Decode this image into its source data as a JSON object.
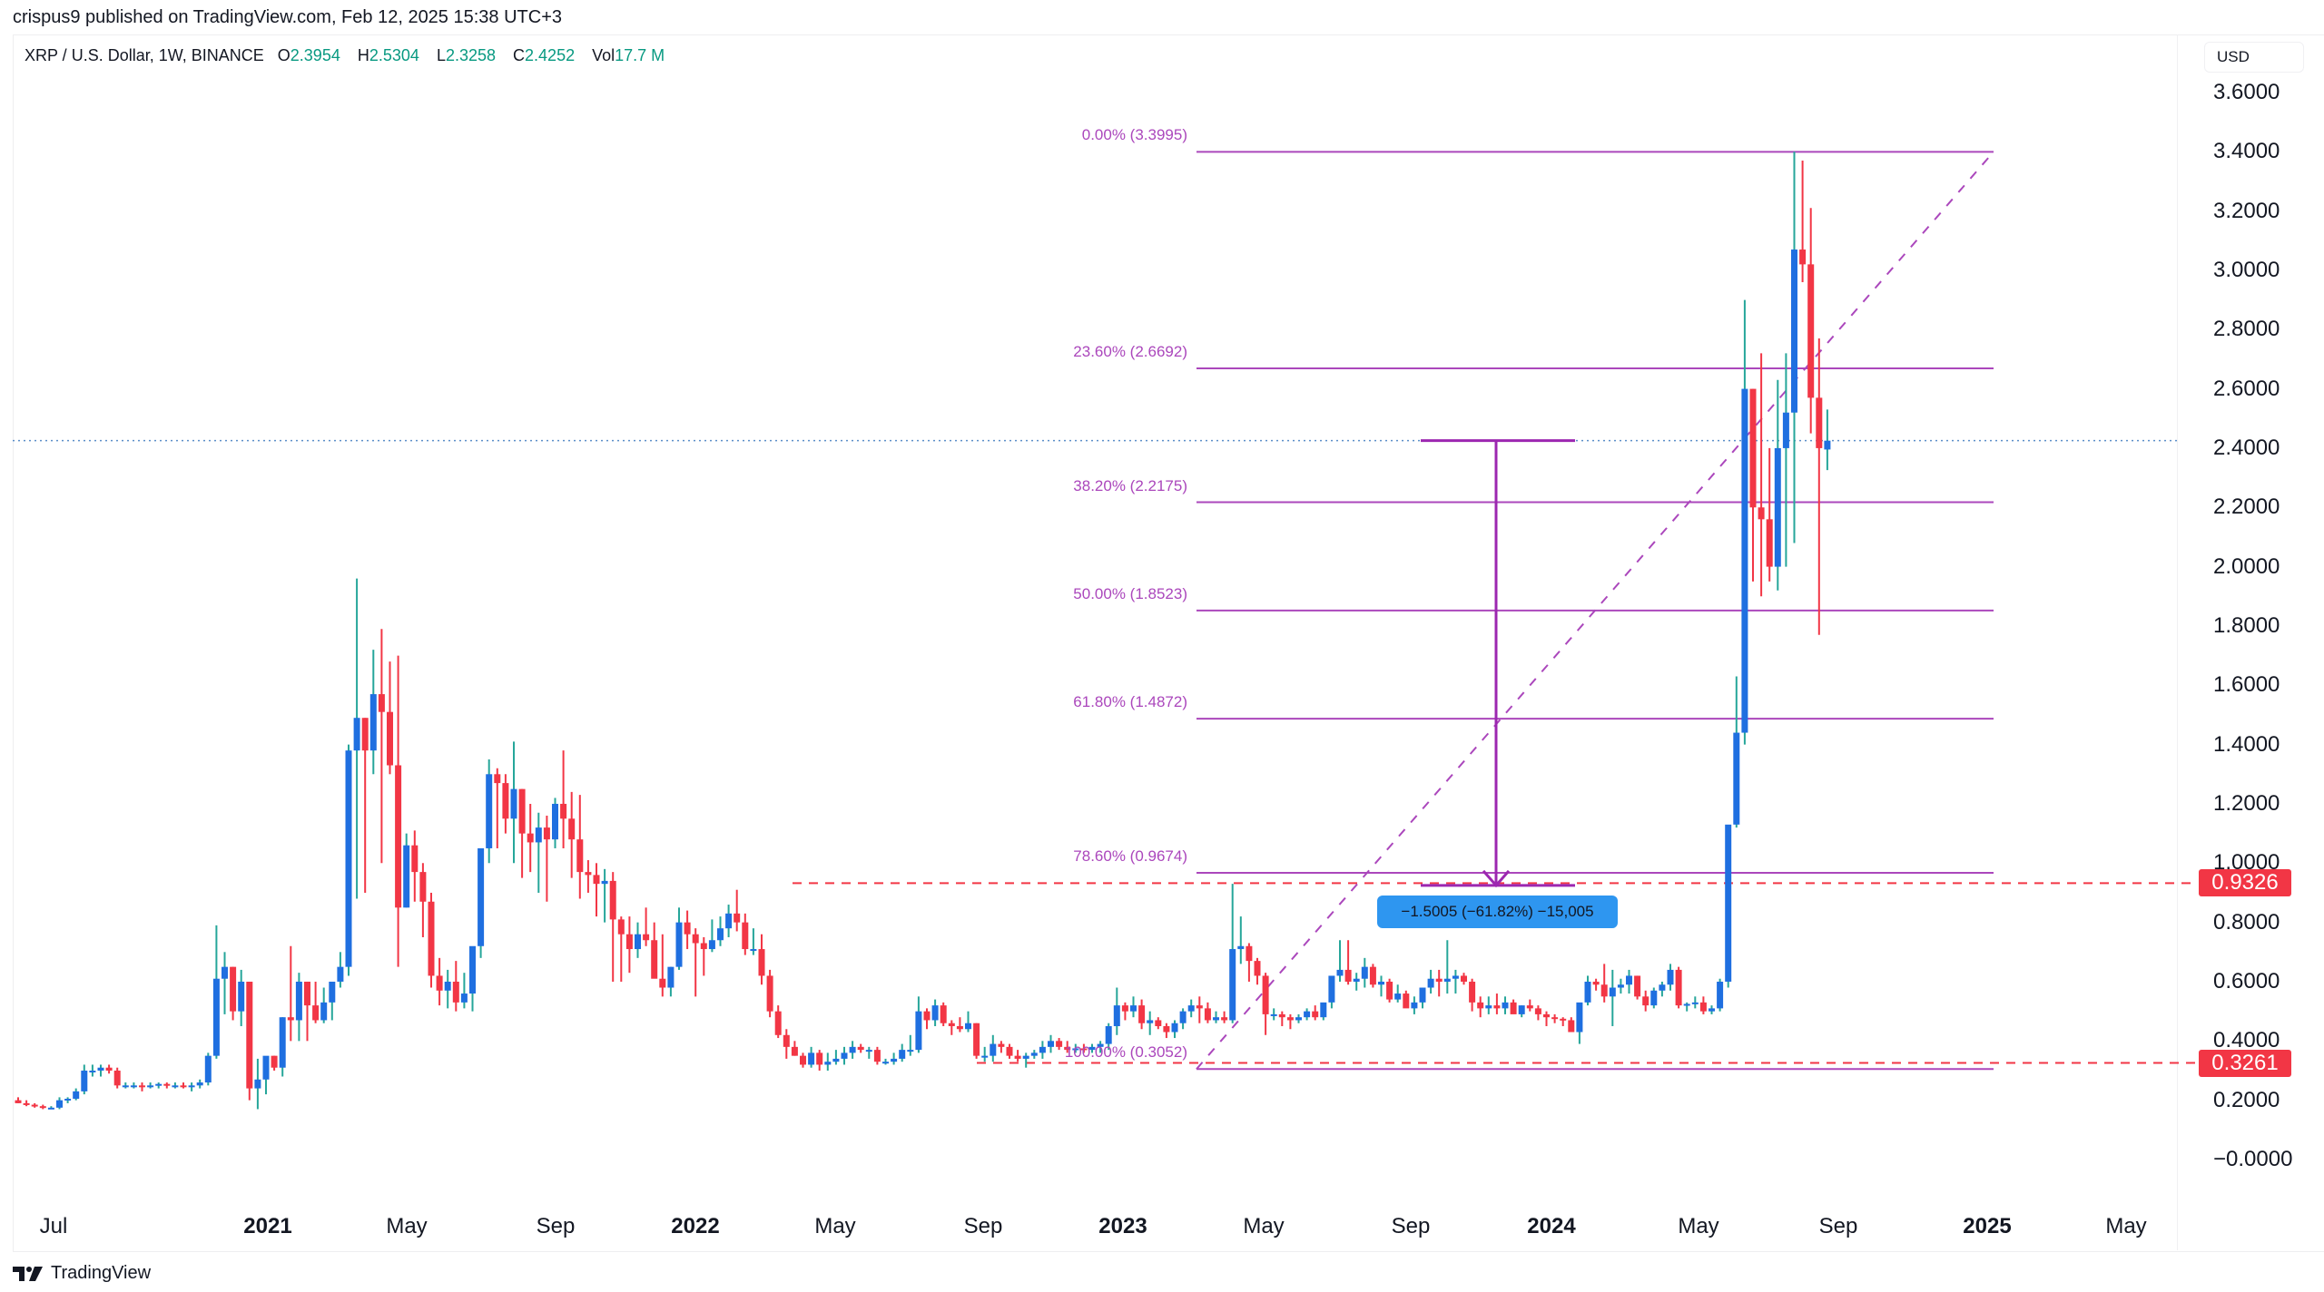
{
  "header": {
    "publisher_line": "crispus9 published on TradingView.com, Feb 12, 2025 15:38 UTC+3"
  },
  "legend": {
    "symbol": "XRP / U.S. Dollar, 1W, BINANCE",
    "open_label": "O",
    "open": "2.3954",
    "high_label": "H",
    "high": "2.5304",
    "low_label": "L",
    "low": "2.3258",
    "close_label": "C",
    "close": "2.4252",
    "vol_label": "Vol",
    "vol": "17.7 M"
  },
  "axis": {
    "currency": "USD",
    "y_ticks": [
      "3.6000",
      "3.4000",
      "3.2000",
      "3.0000",
      "2.8000",
      "2.6000",
      "2.4000",
      "2.2000",
      "2.0000",
      "1.8000",
      "1.6000",
      "1.4000",
      "1.2000",
      "1.0000",
      "0.8000",
      "0.6000",
      "0.4000",
      "0.2000",
      "−0.0000"
    ],
    "x_ticks": [
      {
        "label": "Jul",
        "bold": false
      },
      {
        "label": "2021",
        "bold": true
      },
      {
        "label": "May",
        "bold": false
      },
      {
        "label": "Sep",
        "bold": false
      },
      {
        "label": "2022",
        "bold": true
      },
      {
        "label": "May",
        "bold": false
      },
      {
        "label": "Sep",
        "bold": false
      },
      {
        "label": "2023",
        "bold": true
      },
      {
        "label": "May",
        "bold": false
      },
      {
        "label": "Sep",
        "bold": false
      },
      {
        "label": "2024",
        "bold": true
      },
      {
        "label": "May",
        "bold": false
      },
      {
        "label": "Sep",
        "bold": false
      },
      {
        "label": "2025",
        "bold": true
      },
      {
        "label": "May",
        "bold": false
      }
    ]
  },
  "price_tags": {
    "upper": "0.9326",
    "lower": "0.3261"
  },
  "fibonacci": {
    "levels": [
      {
        "label": "0.00% (3.3995)",
        "value": 3.3995
      },
      {
        "label": "23.60% (2.6692)",
        "value": 2.6692
      },
      {
        "label": "38.20% (2.2175)",
        "value": 2.2175
      },
      {
        "label": "50.00% (1.8523)",
        "value": 1.8523
      },
      {
        "label": "61.80% (1.4872)",
        "value": 1.4872
      },
      {
        "label": "78.60% (0.9674)",
        "value": 0.9674
      },
      {
        "label": "100.00% (0.3052)",
        "value": 0.3052
      }
    ]
  },
  "measure": {
    "label": "−1.5005 (−61.82%) −15,005"
  },
  "footer": {
    "brand": "TradingView"
  },
  "colors": {
    "up_body": "#1f6fe0",
    "up_wick": "#26a69a",
    "down": "#f23645",
    "fib": "#ab47bc",
    "measure": "#9c27b0",
    "tooltip": "#2e96f0",
    "current_price_line": "#5b8ec9"
  },
  "chart_data": {
    "type": "candlestick",
    "title": "XRP / U.S. Dollar, 1W, BINANCE",
    "xlabel": "",
    "ylabel": "USD",
    "ylim": [
      0.0,
      3.6
    ],
    "grid": false,
    "x_tick_labels": [
      "Jul",
      "2021",
      "May",
      "Sep",
      "2022",
      "May",
      "Sep",
      "2023",
      "May",
      "Sep",
      "2024",
      "May",
      "Sep",
      "2025",
      "May"
    ],
    "last_bar": {
      "open": 2.3954,
      "high": 2.5304,
      "low": 2.3258,
      "close": 2.4252,
      "volume": "17.7M"
    },
    "horizontal_lines": [
      {
        "value": 0.9326,
        "style": "dashed",
        "color": "red"
      },
      {
        "value": 0.3261,
        "style": "dashed",
        "color": "red"
      },
      {
        "value": 2.4252,
        "style": "dotted",
        "color": "blue",
        "note": "current price"
      }
    ],
    "fibonacci_retracement": {
      "from": 0.3052,
      "to": 3.3995,
      "levels": {
        "0.0": 3.3995,
        "0.236": 2.6692,
        "0.382": 2.2175,
        "0.5": 1.8523,
        "0.618": 1.4872,
        "0.786": 0.9674,
        "1.0": 0.3052
      }
    },
    "measure": {
      "from": 2.4252,
      "to": 0.9247,
      "change": -1.5005,
      "change_pct": -61.82,
      "ticks": -15005
    },
    "candles_start": "2020-06-15",
    "interval": "1W",
    "candles": [
      [
        0.2,
        0.21,
        0.19,
        0.19
      ],
      [
        0.19,
        0.2,
        0.18,
        0.185
      ],
      [
        0.185,
        0.19,
        0.175,
        0.18
      ],
      [
        0.18,
        0.185,
        0.17,
        0.175
      ],
      [
        0.175,
        0.18,
        0.17,
        0.175
      ],
      [
        0.175,
        0.21,
        0.17,
        0.2
      ],
      [
        0.2,
        0.21,
        0.19,
        0.205
      ],
      [
        0.205,
        0.24,
        0.2,
        0.23
      ],
      [
        0.23,
        0.32,
        0.22,
        0.3
      ],
      [
        0.3,
        0.32,
        0.28,
        0.3
      ],
      [
        0.3,
        0.32,
        0.28,
        0.31
      ],
      [
        0.31,
        0.32,
        0.29,
        0.3
      ],
      [
        0.3,
        0.31,
        0.24,
        0.25
      ],
      [
        0.25,
        0.26,
        0.24,
        0.25
      ],
      [
        0.25,
        0.26,
        0.24,
        0.25
      ],
      [
        0.25,
        0.26,
        0.23,
        0.245
      ],
      [
        0.245,
        0.26,
        0.24,
        0.25
      ],
      [
        0.25,
        0.26,
        0.24,
        0.255
      ],
      [
        0.255,
        0.26,
        0.24,
        0.25
      ],
      [
        0.25,
        0.26,
        0.24,
        0.25
      ],
      [
        0.25,
        0.26,
        0.24,
        0.245
      ],
      [
        0.245,
        0.26,
        0.23,
        0.25
      ],
      [
        0.25,
        0.27,
        0.24,
        0.26
      ],
      [
        0.26,
        0.36,
        0.25,
        0.35
      ],
      [
        0.35,
        0.79,
        0.34,
        0.61
      ],
      [
        0.61,
        0.7,
        0.49,
        0.65
      ],
      [
        0.65,
        0.65,
        0.47,
        0.5
      ],
      [
        0.5,
        0.64,
        0.45,
        0.6
      ],
      [
        0.6,
        0.6,
        0.2,
        0.24
      ],
      [
        0.24,
        0.34,
        0.17,
        0.27
      ],
      [
        0.27,
        0.33,
        0.22,
        0.35
      ],
      [
        0.35,
        0.35,
        0.3,
        0.31
      ],
      [
        0.31,
        0.48,
        0.28,
        0.48
      ],
      [
        0.48,
        0.72,
        0.4,
        0.47
      ],
      [
        0.47,
        0.63,
        0.4,
        0.6
      ],
      [
        0.6,
        0.6,
        0.4,
        0.52
      ],
      [
        0.52,
        0.6,
        0.46,
        0.47
      ],
      [
        0.47,
        0.58,
        0.46,
        0.53
      ],
      [
        0.53,
        0.56,
        0.47,
        0.6
      ],
      [
        0.6,
        0.7,
        0.58,
        0.65
      ],
      [
        0.65,
        1.4,
        0.62,
        1.38
      ],
      [
        1.38,
        1.96,
        0.88,
        1.49
      ],
      [
        1.49,
        1.49,
        0.9,
        1.38
      ],
      [
        1.38,
        1.72,
        1.3,
        1.57
      ],
      [
        1.57,
        1.79,
        1.0,
        1.51
      ],
      [
        1.51,
        1.68,
        1.3,
        1.33
      ],
      [
        1.33,
        1.7,
        0.65,
        0.85
      ],
      [
        0.85,
        1.1,
        0.85,
        1.06
      ],
      [
        1.06,
        1.11,
        0.87,
        0.97
      ],
      [
        0.97,
        1.0,
        0.75,
        0.87
      ],
      [
        0.87,
        0.9,
        0.58,
        0.62
      ],
      [
        0.62,
        0.68,
        0.52,
        0.57
      ],
      [
        0.57,
        0.64,
        0.51,
        0.6
      ],
      [
        0.6,
        0.67,
        0.5,
        0.53
      ],
      [
        0.53,
        0.63,
        0.51,
        0.56
      ],
      [
        0.56,
        0.68,
        0.5,
        0.72
      ],
      [
        0.72,
        0.8,
        0.68,
        1.05
      ],
      [
        1.05,
        1.35,
        1.0,
        1.3
      ],
      [
        1.3,
        1.32,
        1.05,
        1.27
      ],
      [
        1.27,
        1.3,
        1.1,
        1.15
      ],
      [
        1.15,
        1.41,
        1.0,
        1.25
      ],
      [
        1.25,
        1.25,
        0.95,
        1.1
      ],
      [
        1.1,
        1.2,
        0.97,
        1.07
      ],
      [
        1.07,
        1.17,
        0.9,
        1.12
      ],
      [
        1.12,
        1.16,
        0.87,
        1.08
      ],
      [
        1.08,
        1.22,
        1.05,
        1.2
      ],
      [
        1.2,
        1.38,
        1.05,
        1.15
      ],
      [
        1.15,
        1.24,
        0.95,
        1.08
      ],
      [
        1.08,
        1.23,
        0.88,
        0.97
      ],
      [
        0.97,
        1.01,
        0.9,
        0.96
      ],
      [
        0.96,
        1.0,
        0.82,
        0.93
      ],
      [
        0.93,
        0.98,
        0.8,
        0.94
      ],
      [
        0.94,
        0.97,
        0.6,
        0.81
      ],
      [
        0.81,
        0.82,
        0.6,
        0.76
      ],
      [
        0.76,
        0.82,
        0.63,
        0.71
      ],
      [
        0.71,
        0.8,
        0.68,
        0.76
      ],
      [
        0.76,
        0.85,
        0.72,
        0.74
      ],
      [
        0.74,
        0.8,
        0.65,
        0.61
      ],
      [
        0.61,
        0.76,
        0.55,
        0.58
      ],
      [
        0.58,
        0.65,
        0.55,
        0.65
      ],
      [
        0.65,
        0.85,
        0.64,
        0.8
      ],
      [
        0.8,
        0.84,
        0.71,
        0.76
      ],
      [
        0.76,
        0.78,
        0.55,
        0.73
      ],
      [
        0.73,
        0.75,
        0.62,
        0.71
      ],
      [
        0.71,
        0.81,
        0.7,
        0.74
      ],
      [
        0.74,
        0.82,
        0.72,
        0.78
      ],
      [
        0.78,
        0.86,
        0.75,
        0.83
      ],
      [
        0.83,
        0.91,
        0.77,
        0.8
      ],
      [
        0.8,
        0.83,
        0.69,
        0.71
      ],
      [
        0.71,
        0.78,
        0.69,
        0.71
      ],
      [
        0.71,
        0.76,
        0.59,
        0.62
      ],
      [
        0.62,
        0.64,
        0.48,
        0.5
      ],
      [
        0.5,
        0.52,
        0.41,
        0.42
      ],
      [
        0.42,
        0.44,
        0.34,
        0.38
      ],
      [
        0.38,
        0.4,
        0.35,
        0.35
      ],
      [
        0.35,
        0.36,
        0.31,
        0.32
      ],
      [
        0.32,
        0.38,
        0.31,
        0.36
      ],
      [
        0.36,
        0.37,
        0.3,
        0.32
      ],
      [
        0.32,
        0.36,
        0.3,
        0.33
      ],
      [
        0.33,
        0.37,
        0.32,
        0.34
      ],
      [
        0.34,
        0.38,
        0.32,
        0.36
      ],
      [
        0.36,
        0.4,
        0.34,
        0.38
      ],
      [
        0.38,
        0.39,
        0.36,
        0.37
      ],
      [
        0.37,
        0.38,
        0.34,
        0.37
      ],
      [
        0.37,
        0.38,
        0.32,
        0.33
      ],
      [
        0.33,
        0.34,
        0.32,
        0.33
      ],
      [
        0.33,
        0.36,
        0.32,
        0.34
      ],
      [
        0.34,
        0.39,
        0.33,
        0.37
      ],
      [
        0.37,
        0.42,
        0.35,
        0.37
      ],
      [
        0.37,
        0.55,
        0.36,
        0.5
      ],
      [
        0.5,
        0.51,
        0.44,
        0.47
      ],
      [
        0.47,
        0.54,
        0.45,
        0.52
      ],
      [
        0.52,
        0.53,
        0.45,
        0.46
      ],
      [
        0.46,
        0.47,
        0.42,
        0.45
      ],
      [
        0.45,
        0.48,
        0.43,
        0.44
      ],
      [
        0.44,
        0.5,
        0.43,
        0.46
      ],
      [
        0.46,
        0.46,
        0.34,
        0.35
      ],
      [
        0.35,
        0.38,
        0.33,
        0.35
      ],
      [
        0.35,
        0.42,
        0.33,
        0.39
      ],
      [
        0.39,
        0.4,
        0.36,
        0.38
      ],
      [
        0.38,
        0.39,
        0.34,
        0.35
      ],
      [
        0.35,
        0.37,
        0.33,
        0.34
      ],
      [
        0.34,
        0.36,
        0.31,
        0.35
      ],
      [
        0.35,
        0.37,
        0.34,
        0.36
      ],
      [
        0.36,
        0.4,
        0.34,
        0.38
      ],
      [
        0.38,
        0.42,
        0.36,
        0.4
      ],
      [
        0.4,
        0.41,
        0.37,
        0.38
      ],
      [
        0.38,
        0.4,
        0.36,
        0.37
      ],
      [
        0.37,
        0.39,
        0.36,
        0.375
      ],
      [
        0.375,
        0.39,
        0.36,
        0.37
      ],
      [
        0.37,
        0.39,
        0.36,
        0.38
      ],
      [
        0.38,
        0.4,
        0.36,
        0.39
      ],
      [
        0.39,
        0.46,
        0.37,
        0.45
      ],
      [
        0.45,
        0.58,
        0.42,
        0.52
      ],
      [
        0.52,
        0.53,
        0.47,
        0.5
      ],
      [
        0.5,
        0.55,
        0.48,
        0.52
      ],
      [
        0.52,
        0.54,
        0.44,
        0.46
      ],
      [
        0.46,
        0.5,
        0.42,
        0.47
      ],
      [
        0.47,
        0.48,
        0.44,
        0.45
      ],
      [
        0.45,
        0.46,
        0.41,
        0.43
      ],
      [
        0.43,
        0.47,
        0.41,
        0.46
      ],
      [
        0.46,
        0.51,
        0.44,
        0.5
      ],
      [
        0.5,
        0.54,
        0.48,
        0.52
      ],
      [
        0.52,
        0.55,
        0.46,
        0.51
      ],
      [
        0.51,
        0.53,
        0.46,
        0.47
      ],
      [
        0.47,
        0.5,
        0.46,
        0.48
      ],
      [
        0.48,
        0.5,
        0.46,
        0.47
      ],
      [
        0.47,
        0.93,
        0.46,
        0.71
      ],
      [
        0.71,
        0.82,
        0.66,
        0.72
      ],
      [
        0.72,
        0.73,
        0.6,
        0.67
      ],
      [
        0.67,
        0.68,
        0.59,
        0.62
      ],
      [
        0.62,
        0.63,
        0.42,
        0.49
      ],
      [
        0.49,
        0.51,
        0.47,
        0.49
      ],
      [
        0.49,
        0.5,
        0.45,
        0.48
      ],
      [
        0.48,
        0.49,
        0.44,
        0.47
      ],
      [
        0.47,
        0.49,
        0.46,
        0.48
      ],
      [
        0.48,
        0.51,
        0.47,
        0.5
      ],
      [
        0.5,
        0.52,
        0.47,
        0.48
      ],
      [
        0.48,
        0.52,
        0.47,
        0.53
      ],
      [
        0.53,
        0.6,
        0.51,
        0.62
      ],
      [
        0.62,
        0.74,
        0.6,
        0.64
      ],
      [
        0.64,
        0.74,
        0.59,
        0.6
      ],
      [
        0.6,
        0.63,
        0.57,
        0.61
      ],
      [
        0.61,
        0.68,
        0.58,
        0.65
      ],
      [
        0.65,
        0.66,
        0.58,
        0.59
      ],
      [
        0.59,
        0.62,
        0.55,
        0.6
      ],
      [
        0.6,
        0.61,
        0.53,
        0.54
      ],
      [
        0.54,
        0.59,
        0.53,
        0.56
      ],
      [
        0.56,
        0.57,
        0.52,
        0.51
      ],
      [
        0.51,
        0.55,
        0.49,
        0.53
      ],
      [
        0.53,
        0.58,
        0.51,
        0.58
      ],
      [
        0.58,
        0.64,
        0.56,
        0.61
      ],
      [
        0.61,
        0.64,
        0.55,
        0.6
      ],
      [
        0.6,
        0.74,
        0.56,
        0.61
      ],
      [
        0.61,
        0.64,
        0.56,
        0.62
      ],
      [
        0.62,
        0.63,
        0.59,
        0.6
      ],
      [
        0.6,
        0.61,
        0.5,
        0.53
      ],
      [
        0.53,
        0.55,
        0.48,
        0.51
      ],
      [
        0.51,
        0.55,
        0.49,
        0.52
      ],
      [
        0.52,
        0.56,
        0.49,
        0.51
      ],
      [
        0.51,
        0.55,
        0.49,
        0.53
      ],
      [
        0.53,
        0.54,
        0.5,
        0.49
      ],
      [
        0.49,
        0.52,
        0.48,
        0.52
      ],
      [
        0.52,
        0.54,
        0.5,
        0.51
      ],
      [
        0.51,
        0.52,
        0.47,
        0.49
      ],
      [
        0.49,
        0.5,
        0.45,
        0.48
      ],
      [
        0.48,
        0.49,
        0.46,
        0.475
      ],
      [
        0.475,
        0.48,
        0.45,
        0.47
      ],
      [
        0.47,
        0.48,
        0.44,
        0.43
      ],
      [
        0.43,
        0.47,
        0.39,
        0.53
      ],
      [
        0.53,
        0.62,
        0.52,
        0.6
      ],
      [
        0.6,
        0.61,
        0.57,
        0.59
      ],
      [
        0.59,
        0.66,
        0.53,
        0.55
      ],
      [
        0.55,
        0.64,
        0.45,
        0.58
      ],
      [
        0.58,
        0.61,
        0.56,
        0.59
      ],
      [
        0.59,
        0.64,
        0.56,
        0.62
      ],
      [
        0.62,
        0.62,
        0.54,
        0.55
      ],
      [
        0.55,
        0.57,
        0.5,
        0.52
      ],
      [
        0.52,
        0.58,
        0.51,
        0.57
      ],
      [
        0.57,
        0.6,
        0.55,
        0.59
      ],
      [
        0.59,
        0.66,
        0.57,
        0.64
      ],
      [
        0.64,
        0.65,
        0.51,
        0.52
      ],
      [
        0.52,
        0.53,
        0.5,
        0.525
      ],
      [
        0.525,
        0.55,
        0.51,
        0.53
      ],
      [
        0.53,
        0.55,
        0.49,
        0.5
      ],
      [
        0.5,
        0.52,
        0.49,
        0.51
      ],
      [
        0.51,
        0.61,
        0.5,
        0.6
      ],
      [
        0.6,
        1.06,
        0.58,
        1.13
      ],
      [
        1.13,
        1.63,
        1.12,
        1.44
      ],
      [
        1.44,
        2.9,
        1.4,
        2.6
      ],
      [
        2.6,
        2.6,
        1.95,
        2.2
      ],
      [
        2.2,
        2.72,
        1.9,
        2.16
      ],
      [
        2.16,
        2.4,
        1.95,
        2.0
      ],
      [
        2.0,
        2.63,
        1.92,
        2.4
      ],
      [
        2.4,
        2.72,
        2.0,
        2.52
      ],
      [
        2.52,
        3.4,
        2.08,
        3.07
      ],
      [
        3.07,
        3.37,
        2.96,
        3.02
      ],
      [
        3.02,
        3.21,
        2.45,
        2.57
      ],
      [
        2.57,
        2.77,
        1.77,
        2.4
      ],
      [
        2.3954,
        2.5304,
        2.3258,
        2.4252
      ]
    ]
  }
}
